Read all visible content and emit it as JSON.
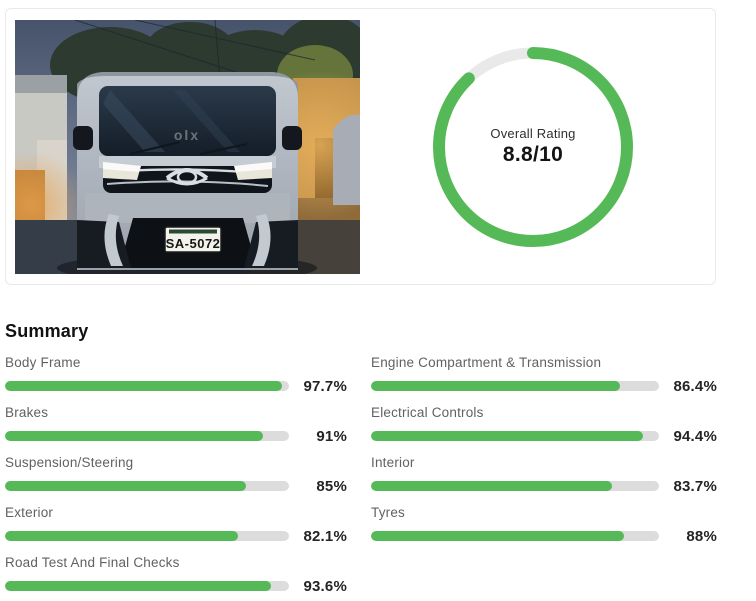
{
  "overview_card": {
    "photo": {
      "description": "vehicle-front-night-photo",
      "license_plate": "SA-5072",
      "watermark": "olx"
    },
    "rating_ring": {
      "label": "Overall Rating",
      "value": "8.8/10",
      "percent": 88,
      "ring_color": "#55b957",
      "track_color": "#e9e9e9"
    }
  },
  "summary": {
    "title": "Summary",
    "bar_color": "#55b957",
    "track_color": "#dcdcdc",
    "columns": {
      "left": [
        {
          "label": "Body Frame",
          "percent": 97.7,
          "display": "97.7%"
        },
        {
          "label": "Brakes",
          "percent": 91,
          "display": "91%"
        },
        {
          "label": "Suspension/Steering",
          "percent": 85,
          "display": "85%"
        },
        {
          "label": "Exterior",
          "percent": 82.1,
          "display": "82.1%"
        },
        {
          "label": "Road Test And Final Checks",
          "percent": 93.6,
          "display": "93.6%"
        }
      ],
      "right": [
        {
          "label": "Engine Compartment & Transmission",
          "percent": 86.4,
          "display": "86.4%"
        },
        {
          "label": "Electrical Controls",
          "percent": 94.4,
          "display": "94.4%"
        },
        {
          "label": "Interior",
          "percent": 83.7,
          "display": "83.7%"
        },
        {
          "label": "Tyres",
          "percent": 88,
          "display": "88%"
        }
      ]
    }
  }
}
